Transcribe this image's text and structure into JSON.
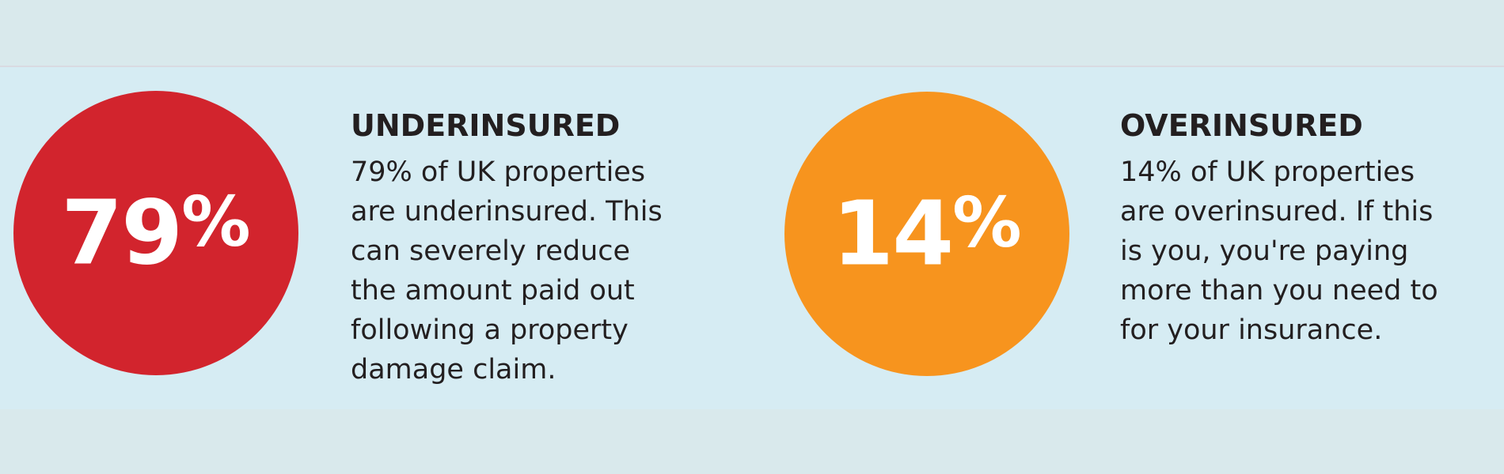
{
  "page": {
    "background_color": "#d6ecf3",
    "top_band_color": "#d9e9ec",
    "bottom_band_color": "#d9e9ec",
    "divider_color": "#d9dae1",
    "text_color": "#231f20"
  },
  "stats": [
    {
      "id": "underinsured",
      "value": "79",
      "percent_sign": "%",
      "circle_color": "#d2242d",
      "heading": "UNDERINSURED",
      "body": "79% of UK properties\nare underinsured. This\ncan severely reduce\nthe amount paid out\nfollowing a property\ndamage claim."
    },
    {
      "id": "overinsured",
      "value": "14",
      "percent_sign": "%",
      "circle_color": "#f7941e",
      "heading": "OVERINSURED",
      "body": "14% of UK properties\nare overinsured. If this\nis you, you're paying\nmore than you need to\nfor your insurance."
    }
  ]
}
